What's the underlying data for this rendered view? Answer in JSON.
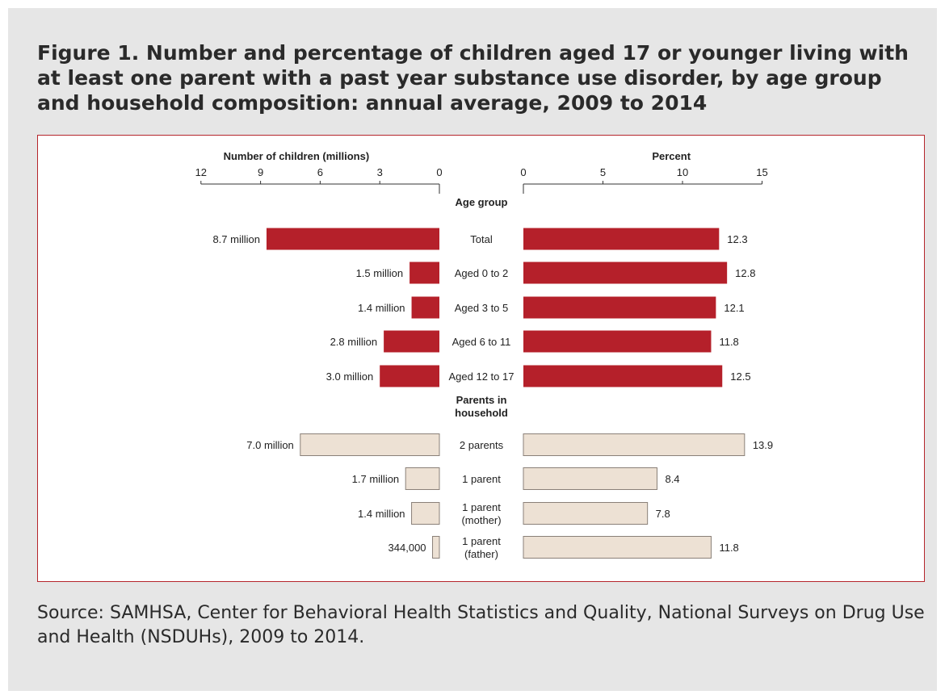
{
  "title": "Figure 1. Number and percentage of children aged 17 or younger living with at least one parent with a past year substance use disorder, by age group and household composition: annual average, 2009 to 2014",
  "source": "Source: SAMHSA, Center for Behavioral Health Statistics and Quality, National Surveys on Drug Use and Health (NSDUHs), 2009 to 2014.",
  "colors": {
    "age_bar": "#b5202a",
    "household_bar": "#ede1d4",
    "household_stroke": "#8a8078",
    "frame": "#b5252b"
  },
  "chart_data": {
    "type": "bar",
    "orientation": "horizontal-butterfly",
    "left_axis": {
      "label": "Number of children (millions)",
      "ticks": [
        "12",
        "9",
        "6",
        "3",
        "0"
      ],
      "range": [
        12,
        0
      ]
    },
    "right_axis": {
      "label": "Percent",
      "ticks": [
        "0",
        "5",
        "10",
        "15"
      ],
      "range": [
        0,
        15
      ]
    },
    "groups": [
      {
        "name": "Age group",
        "color": "#b5202a",
        "rows": [
          {
            "label": "Total",
            "count_label": "8.7 million",
            "count": 8.7,
            "percent_label": "12.3",
            "percent": 12.3
          },
          {
            "label": "Aged 0 to 2",
            "count_label": "1.5 million",
            "count": 1.5,
            "percent_label": "12.8",
            "percent": 12.8
          },
          {
            "label": "Aged 3 to 5",
            "count_label": "1.4 million",
            "count": 1.4,
            "percent_label": "12.1",
            "percent": 12.1
          },
          {
            "label": "Aged 6 to 11",
            "count_label": "2.8 million",
            "count": 2.8,
            "percent_label": "11.8",
            "percent": 11.8
          },
          {
            "label": "Aged 12 to 17",
            "count_label": "3.0 million",
            "count": 3.0,
            "percent_label": "12.5",
            "percent": 12.5
          }
        ]
      },
      {
        "name": "Parents in household",
        "color": "#ede1d4",
        "rows": [
          {
            "label": "2 parents",
            "count_label": "7.0 million",
            "count": 7.0,
            "percent_label": "13.9",
            "percent": 13.9
          },
          {
            "label": "1 parent",
            "count_label": "1.7 million",
            "count": 1.7,
            "percent_label": "8.4",
            "percent": 8.4
          },
          {
            "label": "1 parent (mother)",
            "count_label": "1.4 million",
            "count": 1.4,
            "percent_label": "7.8",
            "percent": 7.8
          },
          {
            "label": "1 parent (father)",
            "count_label": "344,000",
            "count": 0.344,
            "percent_label": "11.8",
            "percent": 11.8
          }
        ]
      }
    ]
  }
}
